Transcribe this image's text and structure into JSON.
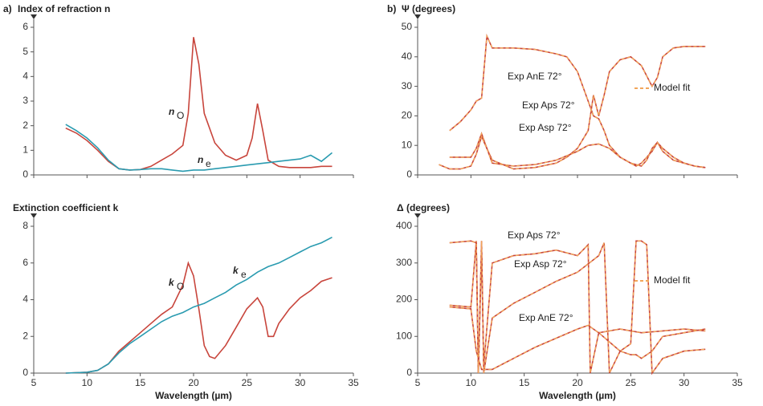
{
  "chart_data": [
    {
      "type": "line",
      "panel_label": "a)",
      "title": "Index of refraction n",
      "xlim": [
        5,
        35
      ],
      "xticks": [
        5,
        10,
        15,
        20,
        25,
        30,
        35
      ],
      "xtick_labels": false,
      "ylim": [
        0,
        6
      ],
      "yticks": [
        0,
        1,
        2,
        3,
        4,
        5,
        6
      ],
      "series": [
        {
          "name": "n",
          "subscript": "O",
          "color": "#c8453c",
          "x": [
            8,
            9,
            10,
            11,
            12,
            13,
            14,
            15,
            16,
            17,
            18,
            19,
            19.5,
            20,
            20.5,
            21,
            22,
            23,
            24,
            25,
            25.5,
            26,
            26.5,
            27,
            28,
            29,
            30,
            31,
            32,
            33
          ],
          "values": [
            1.9,
            1.7,
            1.4,
            1.0,
            0.55,
            0.25,
            0.2,
            0.22,
            0.35,
            0.6,
            0.85,
            1.2,
            2.5,
            5.6,
            4.5,
            2.5,
            1.3,
            0.8,
            0.6,
            0.8,
            1.5,
            2.9,
            1.8,
            0.6,
            0.35,
            0.3,
            0.3,
            0.3,
            0.35,
            0.35
          ]
        },
        {
          "name": "n",
          "subscript": "e",
          "color": "#2a9bb0",
          "x": [
            8,
            9,
            10,
            11,
            12,
            13,
            14,
            15,
            16,
            17,
            18,
            19,
            20,
            21,
            22,
            23,
            24,
            25,
            26,
            27,
            28,
            29,
            30,
            31,
            32,
            33
          ],
          "values": [
            2.05,
            1.8,
            1.5,
            1.1,
            0.6,
            0.25,
            0.2,
            0.22,
            0.25,
            0.25,
            0.2,
            0.15,
            0.2,
            0.2,
            0.25,
            0.3,
            0.35,
            0.4,
            0.45,
            0.5,
            0.55,
            0.6,
            0.65,
            0.8,
            0.55,
            0.9
          ]
        }
      ]
    },
    {
      "type": "line",
      "title": "Extinction coefficient k",
      "xlabel": "Wavelength (µm)",
      "xlim": [
        5,
        35
      ],
      "xticks": [
        5,
        10,
        15,
        20,
        25,
        30,
        35
      ],
      "xtick_labels": true,
      "ylim": [
        0,
        8
      ],
      "yticks": [
        0,
        2,
        4,
        6,
        8
      ],
      "series": [
        {
          "name": "k",
          "subscript": "O",
          "color": "#c8453c",
          "x": [
            8,
            10,
            11,
            12,
            13,
            14,
            15,
            16,
            17,
            18,
            19,
            19.5,
            20,
            20.5,
            21,
            21.5,
            22,
            23,
            24,
            25,
            26,
            26.5,
            27,
            27.5,
            28,
            29,
            30,
            31,
            32,
            33
          ],
          "values": [
            0,
            0.05,
            0.15,
            0.5,
            1.2,
            1.7,
            2.2,
            2.7,
            3.2,
            3.6,
            4.8,
            6.0,
            5.3,
            3.5,
            1.5,
            0.9,
            0.8,
            1.5,
            2.5,
            3.5,
            4.1,
            3.6,
            2.0,
            2.0,
            2.7,
            3.5,
            4.1,
            4.5,
            5.0,
            5.2
          ]
        },
        {
          "name": "k",
          "subscript": "e",
          "color": "#2a9bb0",
          "x": [
            8,
            10,
            11,
            12,
            13,
            14,
            15,
            16,
            17,
            18,
            19,
            20,
            21,
            22,
            23,
            24,
            25,
            26,
            27,
            28,
            29,
            30,
            31,
            32,
            33
          ],
          "values": [
            0,
            0.05,
            0.15,
            0.5,
            1.1,
            1.6,
            2.0,
            2.4,
            2.8,
            3.1,
            3.3,
            3.6,
            3.8,
            4.1,
            4.4,
            4.8,
            5.1,
            5.5,
            5.8,
            6.0,
            6.3,
            6.6,
            6.9,
            7.1,
            7.4
          ]
        }
      ]
    },
    {
      "type": "line",
      "panel_label": "b)",
      "title": "Ψ (degrees)",
      "xlim": [
        5,
        35
      ],
      "xticks": [
        5,
        10,
        15,
        20,
        25,
        30,
        35
      ],
      "xtick_labels": false,
      "ylim": [
        0,
        50
      ],
      "yticks": [
        0,
        10,
        20,
        30,
        40,
        50
      ],
      "model_fit": {
        "name": "Model fit",
        "color": "#f2a65a"
      },
      "series": [
        {
          "name": "Exp AnE 72°",
          "color": "#c8453c",
          "x": [
            8,
            9,
            10,
            10.5,
            11,
            11.5,
            12,
            14,
            16,
            18,
            19,
            20,
            21,
            21.5,
            22,
            22.5,
            23,
            24,
            25,
            25.5,
            26,
            27,
            27.5,
            28,
            29,
            30,
            31,
            32
          ],
          "values": [
            15,
            18,
            22,
            25,
            26,
            47,
            43,
            43,
            42.5,
            41,
            40,
            35,
            25,
            20,
            19,
            15,
            10,
            6,
            4,
            3,
            4,
            8,
            11,
            8,
            5,
            4,
            3,
            2.5
          ]
        },
        {
          "name": "Exp Aps 72°",
          "color": "#c8453c",
          "x": [
            8,
            10,
            10.5,
            11,
            11.5,
            12,
            14,
            16,
            18,
            19,
            20,
            21,
            21.5,
            22,
            22.5,
            23,
            24,
            25,
            26,
            27,
            27.5,
            28,
            29,
            30,
            31,
            32
          ],
          "values": [
            6,
            6,
            9,
            14,
            9,
            5,
            2,
            2.5,
            4,
            6,
            9,
            15,
            27,
            20,
            27,
            35,
            39,
            40,
            37,
            30,
            33,
            40,
            43,
            43.5,
            43.5,
            43.5
          ]
        },
        {
          "name": "Exp Asp 72°",
          "color": "#c8453c",
          "x": [
            7,
            8,
            9,
            10,
            10.5,
            11,
            11.5,
            12,
            14,
            16,
            18,
            20,
            21,
            22,
            23,
            24,
            25,
            26,
            26.5,
            27,
            27.5,
            28,
            29,
            30,
            31,
            32
          ],
          "values": [
            3.5,
            2,
            2,
            3,
            7,
            13,
            9,
            4,
            3,
            3.5,
            5,
            8,
            10,
            10.5,
            9,
            6,
            4,
            3,
            5,
            9,
            11,
            9,
            6,
            4,
            3,
            2.5
          ]
        }
      ]
    },
    {
      "type": "line",
      "title": "Δ (degrees)",
      "xlabel": "Wavelength (µm)",
      "xlim": [
        5,
        35
      ],
      "xticks": [
        5,
        10,
        15,
        20,
        25,
        30,
        35
      ],
      "xtick_labels": true,
      "ylim": [
        0,
        400
      ],
      "yticks": [
        0,
        100,
        200,
        300,
        400
      ],
      "model_fit": {
        "name": "Model fit",
        "color": "#f2a65a"
      },
      "series": [
        {
          "name": "Exp Aps 72°",
          "color": "#c8453c",
          "x": [
            8,
            10,
            10.5,
            10.7,
            11,
            11.2,
            12,
            14,
            16,
            18,
            20,
            21,
            21.2,
            22,
            24,
            26,
            28,
            30,
            32
          ],
          "values": [
            185,
            180,
            360,
            0,
            340,
            20,
            300,
            320,
            325,
            335,
            320,
            350,
            0,
            110,
            120,
            110,
            115,
            120,
            115
          ]
        },
        {
          "name": "Exp Asp 72°",
          "color": "#c8453c",
          "x": [
            8,
            10,
            10.5,
            10.7,
            11,
            11.2,
            12,
            14,
            16,
            18,
            20,
            22,
            22.5,
            23,
            24,
            25,
            25.5,
            26,
            26.5,
            27,
            28,
            30,
            32
          ],
          "values": [
            355,
            360,
            355,
            0,
            360,
            0,
            150,
            190,
            220,
            250,
            275,
            320,
            355,
            0,
            60,
            80,
            360,
            360,
            350,
            0,
            40,
            60,
            65
          ]
        },
        {
          "name": "Exp AnE 72°",
          "color": "#c8453c",
          "x": [
            8,
            10,
            10.5,
            11,
            12,
            14,
            16,
            18,
            20,
            21,
            22,
            24,
            25,
            25.5,
            26,
            27,
            28,
            30,
            32
          ],
          "values": [
            180,
            175,
            60,
            10,
            10,
            40,
            70,
            95,
            120,
            130,
            110,
            60,
            50,
            50,
            40,
            60,
            100,
            110,
            120
          ]
        }
      ]
    }
  ]
}
